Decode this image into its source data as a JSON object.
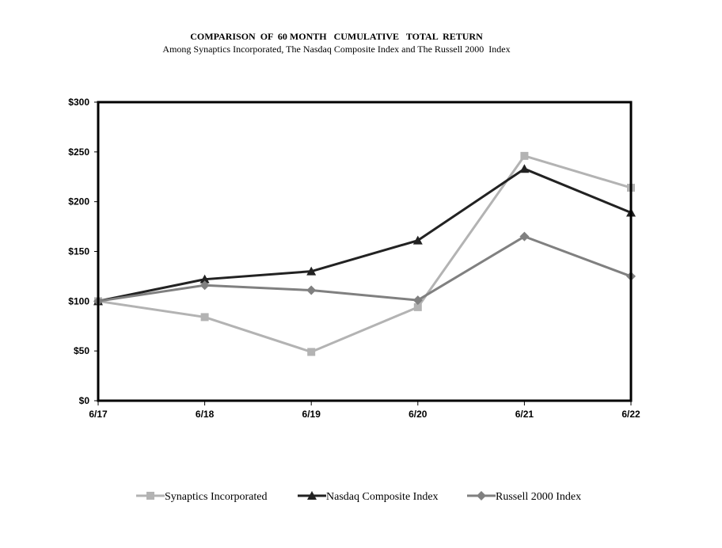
{
  "chart_data": {
    "type": "line",
    "title": "COMPARISON  OF  60 MONTH   CUMULATIVE   TOTAL  RETURN",
    "subtitle": "Among Synaptics Incorporated, The Nasdaq Composite Index and The Russell 2000  Index",
    "categories": [
      "6/17",
      "6/18",
      "6/19",
      "6/20",
      "6/21",
      "6/22"
    ],
    "y_ticks": [
      "$0",
      "$50",
      "$100",
      "$150",
      "$200",
      "$250",
      "$300"
    ],
    "ylim": [
      0,
      300
    ],
    "grid": false,
    "legend_position": "bottom",
    "series": [
      {
        "name": "Synaptics Incorporated",
        "values": [
          100,
          84,
          49,
          94,
          246,
          214
        ],
        "color": "#b3b3b3",
        "marker": "square"
      },
      {
        "name": "Nasdaq Composite Index",
        "values": [
          100,
          122,
          130,
          161,
          233,
          189
        ],
        "color": "#222222",
        "marker": "triangle"
      },
      {
        "name": "Russell 2000 Index",
        "values": [
          100,
          116,
          111,
          101,
          165,
          125
        ],
        "color": "#808080",
        "marker": "diamond"
      }
    ]
  }
}
